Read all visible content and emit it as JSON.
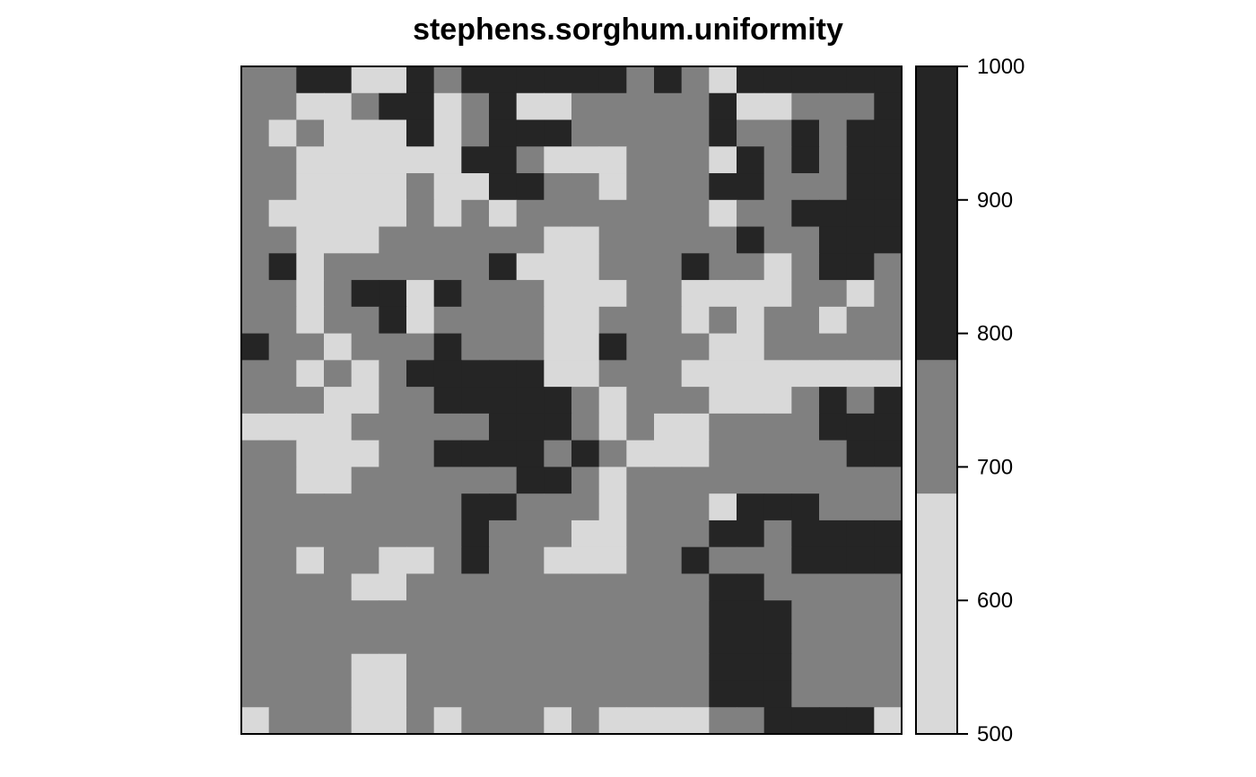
{
  "chart_data": {
    "type": "heatmap",
    "title": "stephens.sorghum.uniformity",
    "xlabel": "",
    "ylabel": "",
    "n_cols": 24,
    "n_rows": 25,
    "colorbar": {
      "ticks": [
        "1000",
        "900",
        "800",
        "700",
        "600",
        "500"
      ],
      "range": [
        500,
        1000
      ],
      "bins": [
        {
          "min": 500,
          "max": 680,
          "color": "#d9d9d9"
        },
        {
          "min": 680,
          "max": 780,
          "color": "#808080"
        },
        {
          "min": 780,
          "max": 1000,
          "color": "#252525"
        }
      ]
    },
    "level_colors": [
      "#d9d9d9",
      "#808080",
      "#252525"
    ],
    "grid_levels": [
      "112200212222221210222222",
      "110012201200111112001112",
      "101000201222111112112122",
      "110000002210001110212122",
      "110000100221101112211122",
      "100000101011111110112222",
      "110001111110011111211222",
      "120111111200011121101221",
      "110122021110001100001101",
      "110112011110011101011011",
      "211011121110021110011111",
      "110101222220011100000000",
      "111001122222101110001212",
      "000011111222101001111222",
      "110001122221210001111122",
      "110011111122101111111111",
      "111111112211101110222111",
      "111111112111001112212222",
      "110110012110001121112222",
      "111100111111111112211111",
      "111111111111111112221111",
      "111111111111111112221111",
      "111100111111111112221111",
      "111100111111111112221111",
      "011100101110100001122220"
    ]
  }
}
